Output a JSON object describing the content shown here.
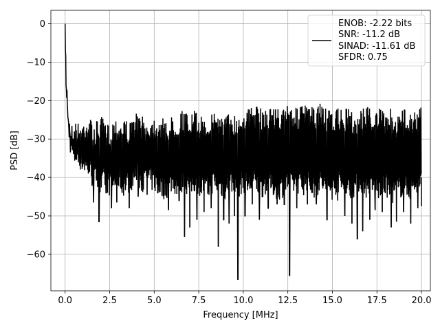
{
  "chart_data": {
    "type": "line",
    "xlabel": "Frequency [MHz]",
    "ylabel": "PSD [dB]",
    "xlim": [
      -0.8,
      20.5
    ],
    "ylim": [
      -69.5,
      3.5
    ],
    "xticks": [
      0.0,
      2.5,
      5.0,
      7.5,
      10.0,
      12.5,
      15.0,
      17.5,
      20.0
    ],
    "xtick_labels": [
      "0.0",
      "2.5",
      "5.0",
      "7.5",
      "10.0",
      "12.5",
      "15.0",
      "17.5",
      "20.0"
    ],
    "yticks": [
      0,
      -10,
      -20,
      -30,
      -40,
      -50,
      -60
    ],
    "ytick_labels": [
      "0",
      "−10",
      "−20",
      "−30",
      "−40",
      "−50",
      "−60"
    ],
    "grid": true,
    "legend_position": "top-right",
    "series": [
      {
        "color": "#000000",
        "legend_lines": [
          "ENOB: -2.22 bits",
          "SNR: -11.2 dB",
          "SINAD: -11.61 dB",
          "SFDR: 0.75"
        ],
        "x": [
          0.0,
          0.02,
          0.05,
          0.08,
          0.12,
          0.16,
          0.2,
          0.25,
          0.3,
          0.4,
          0.5,
          0.6,
          0.8,
          1.0,
          1.2,
          1.4,
          1.6,
          1.8,
          2.0,
          2.2,
          2.5,
          2.8,
          3.0,
          3.3,
          3.6,
          4.0,
          4.3,
          4.6,
          5.0,
          5.3,
          5.6,
          6.0,
          6.3,
          6.6,
          7.0,
          7.3,
          7.6,
          8.0,
          8.3,
          8.6,
          9.0,
          9.3,
          9.6,
          10.0,
          10.3,
          10.6,
          11.0,
          11.3,
          11.6,
          12.0,
          12.3,
          12.5,
          12.7,
          13.0,
          13.3,
          13.6,
          14.0,
          14.3,
          14.6,
          15.0,
          15.3,
          15.6,
          16.0,
          16.3,
          16.6,
          17.0,
          17.3,
          17.6,
          18.0,
          18.3,
          18.6,
          19.0,
          19.3,
          19.6,
          20.0
        ],
        "max": [
          0,
          -5,
          -10,
          -14,
          -16,
          -20,
          -22,
          -24,
          -25,
          -26,
          -26,
          -25,
          -26,
          -25,
          -24,
          -24,
          -27,
          -25,
          -24,
          -25,
          -26,
          -24,
          -25,
          -24,
          -26,
          -23,
          -24,
          -25,
          -24,
          -24,
          -25,
          -24,
          -24,
          -22,
          -24,
          -22,
          -24,
          -24,
          -22,
          -23,
          -24,
          -22,
          -24,
          -22,
          -22,
          -21,
          -22,
          -22,
          -21,
          -22,
          -22,
          -20,
          -21,
          -22,
          -21,
          -21,
          -22,
          -20,
          -22,
          -23,
          -22,
          -22,
          -22,
          -24,
          -22,
          -21,
          -23,
          -22,
          -23,
          -22,
          -24,
          -22,
          -22,
          -23,
          -21
        ],
        "min": [
          -3,
          -12,
          -17,
          -22,
          -25,
          -28,
          -30,
          -32,
          -34,
          -36,
          -38,
          -37,
          -38,
          -39,
          -40,
          -41,
          -44,
          -42,
          -46,
          -43,
          -45,
          -44,
          -43,
          -45,
          -44,
          -42,
          -44,
          -43,
          -44,
          -45,
          -46,
          -44,
          -45,
          -44,
          -45,
          -44,
          -45,
          -46,
          -44,
          -45,
          -46,
          -44,
          -46,
          -44,
          -45,
          -44,
          -46,
          -44,
          -45,
          -46,
          -45,
          -44,
          -45,
          -44,
          -45,
          -44,
          -46,
          -44,
          -45,
          -46,
          -44,
          -45,
          -46,
          -45,
          -44,
          -46,
          -45,
          -46,
          -45,
          -47,
          -46,
          -45,
          -46,
          -45,
          -44
        ],
        "dips": [
          [
            1.6,
            -46.5
          ],
          [
            1.9,
            -51.5
          ],
          [
            2.3,
            -44
          ],
          [
            2.6,
            -48
          ],
          [
            2.9,
            -46.5
          ],
          [
            3.2,
            -44
          ],
          [
            3.6,
            -48
          ],
          [
            4.1,
            -45
          ],
          [
            4.6,
            -44.5
          ],
          [
            5.2,
            -44
          ],
          [
            5.8,
            -48.5
          ],
          [
            6.4,
            -46
          ],
          [
            6.7,
            -55.5
          ],
          [
            7.0,
            -53
          ],
          [
            7.4,
            -51
          ],
          [
            7.8,
            -49
          ],
          [
            8.2,
            -48
          ],
          [
            8.6,
            -58
          ],
          [
            8.9,
            -51
          ],
          [
            9.2,
            -52
          ],
          [
            9.5,
            -50
          ],
          [
            9.7,
            -66.5
          ],
          [
            10.1,
            -50
          ],
          [
            10.5,
            -47
          ],
          [
            10.9,
            -51
          ],
          [
            11.4,
            -48
          ],
          [
            11.9,
            -47
          ],
          [
            12.3,
            -47
          ],
          [
            12.6,
            -65.5
          ],
          [
            13.0,
            -48
          ],
          [
            13.6,
            -47
          ],
          [
            14.1,
            -47
          ],
          [
            14.7,
            -51
          ],
          [
            15.3,
            -46
          ],
          [
            15.7,
            -50
          ],
          [
            16.1,
            -52
          ],
          [
            16.4,
            -56
          ],
          [
            16.7,
            -54
          ],
          [
            17.1,
            -51
          ],
          [
            17.4,
            -48.5
          ],
          [
            17.8,
            -49
          ],
          [
            18.3,
            -53
          ],
          [
            18.6,
            -51.5
          ],
          [
            19.0,
            -49
          ],
          [
            19.4,
            -52
          ],
          [
            19.8,
            -48
          ],
          [
            20.0,
            -47.5
          ]
        ]
      }
    ]
  }
}
